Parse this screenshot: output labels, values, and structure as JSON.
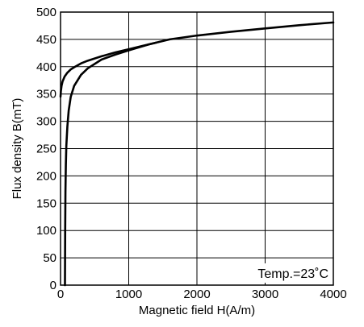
{
  "chart_data": {
    "type": "line",
    "title": "",
    "xlabel": "Magnetic field H(A/m)",
    "ylabel": "Flux density B(mT)",
    "annotation": "Temp.=23˚C",
    "xlim": [
      0,
      4000
    ],
    "ylim": [
      0,
      500
    ],
    "xticks": [
      0,
      1000,
      2000,
      3000,
      4000
    ],
    "yticks": [
      0,
      50,
      100,
      150,
      200,
      250,
      300,
      350,
      400,
      450,
      500
    ],
    "xtick_labels": [
      "0",
      "1000",
      "2000",
      "3000",
      "4000"
    ],
    "ytick_labels": [
      "0",
      "50",
      "100",
      "150",
      "200",
      "250",
      "300",
      "350",
      "400",
      "450",
      "500"
    ],
    "grid": true,
    "line_color": "#000000",
    "series": [
      {
        "x": [
          65,
          68,
          72,
          78,
          85,
          100,
          120,
          150,
          200,
          300,
          400,
          600,
          800,
          1000,
          1300,
          1600,
          2000,
          2500,
          3000,
          3500,
          4000
        ],
        "y": [
          0,
          100,
          170,
          220,
          255,
          290,
          320,
          345,
          365,
          385,
          397,
          413,
          422,
          430,
          441,
          450,
          457,
          464,
          470,
          476,
          481
        ]
      },
      {
        "x": [
          0,
          5,
          15,
          30,
          60,
          100,
          150,
          200,
          300,
          400,
          500,
          600,
          800,
          1000,
          1200,
          1400
        ],
        "y": [
          345,
          355,
          365,
          373,
          382,
          389,
          395,
          399,
          406,
          411,
          415,
          419,
          426,
          432,
          438,
          444
        ]
      }
    ]
  }
}
